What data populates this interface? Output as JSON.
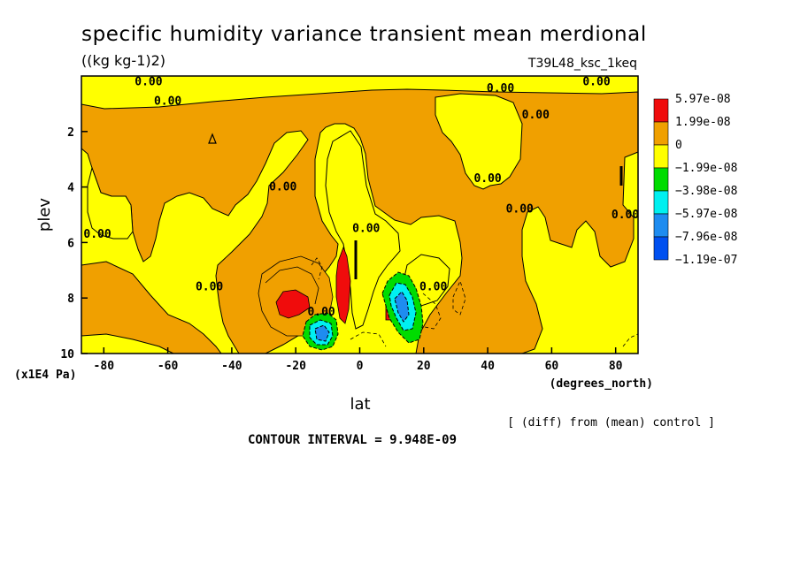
{
  "chart_data": {
    "type": "contour",
    "title": "specific humidity variance transient mean merdional",
    "units": "((kg kg-1)2)",
    "run_label": "T39L48_ksc_1keq",
    "xlabel": "lat",
    "xunits": "(degrees_north)",
    "ylabel": "plev",
    "yunits": "(x1E4 Pa)",
    "xlim": [
      -87,
      87
    ],
    "ylim": [
      10,
      0
    ],
    "x_ticks": [
      "-80",
      "-60",
      "-40",
      "-20",
      "0",
      "20",
      "40",
      "60",
      "80"
    ],
    "x_tick_values": [
      -80,
      -60,
      -40,
      -20,
      0,
      20,
      40,
      60,
      80
    ],
    "y_ticks": [
      "2",
      "4",
      "6",
      "8",
      "10"
    ],
    "y_tick_values": [
      2,
      4,
      6,
      8,
      10
    ],
    "contour_labels": [
      "0.00",
      "0.00",
      "0.00",
      "0.00",
      "0.00",
      "0.00",
      "0.00",
      "0.00",
      "0.00",
      "0.00",
      "0.00",
      "0.00",
      "0.00",
      "0.00"
    ],
    "contour_label_positions": [
      {
        "lat": -66,
        "plev": 0.2
      },
      {
        "lat": -60,
        "plev": 0.9
      },
      {
        "lat": 44,
        "plev": 0.45
      },
      {
        "lat": 74,
        "plev": 0.2
      },
      {
        "lat": 55,
        "plev": 1.4
      },
      {
        "lat": -24,
        "plev": 4.0
      },
      {
        "lat": 2,
        "plev": 5.5
      },
      {
        "lat": 40,
        "plev": 3.7
      },
      {
        "lat": 50,
        "plev": 4.8
      },
      {
        "lat": 83,
        "plev": 5.0
      },
      {
        "lat": -82,
        "plev": 5.7
      },
      {
        "lat": -47,
        "plev": 7.6
      },
      {
        "lat": 23,
        "plev": 7.6
      },
      {
        "lat": -12,
        "plev": 8.5
      }
    ],
    "colorbar": {
      "labels": [
        "5.97e-08",
        "1.99e-08",
        "0",
        "−1.99e-08",
        "−3.98e-08",
        "−5.97e-08",
        "−7.96e-08",
        "−1.19e-07"
      ],
      "colors": [
        "#f00c0c",
        "#f0a000",
        "#ffff00",
        "#00dc00",
        "#00f0f0",
        "#1e8cf0",
        "#0050f0"
      ]
    },
    "colors": {
      "positive_strong": "#f00c0c",
      "positive": "#f0a000",
      "near_zero": "#ffff00",
      "neg1": "#00dc00",
      "neg2": "#00f0f0",
      "neg3": "#1e8cf0",
      "neg4": "#0050f0"
    }
  },
  "footer": {
    "diff_note": "[ (diff) from (mean) control ]",
    "contour_interval": "CONTOUR INTERVAL = 9.948E-09"
  }
}
